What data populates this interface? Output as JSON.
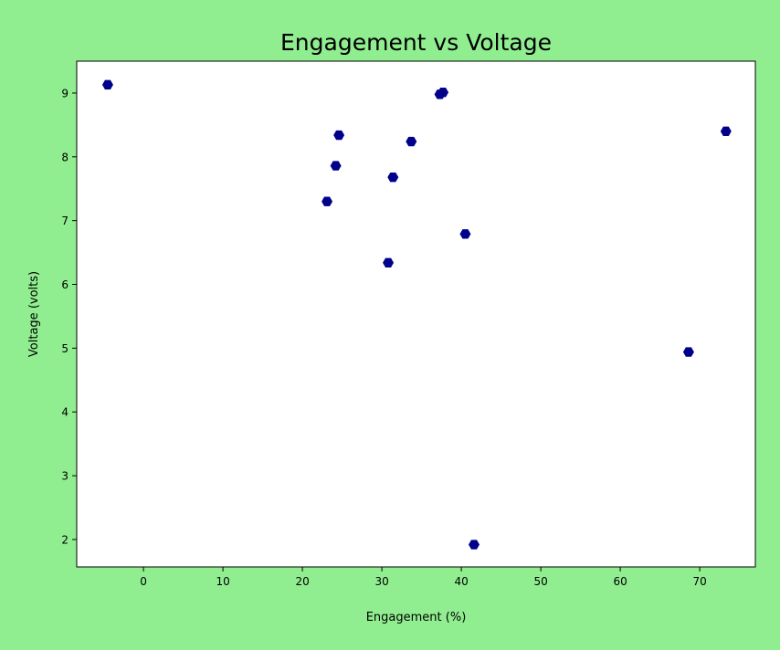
{
  "chart_data": {
    "type": "scatter",
    "title": "Engagement vs Voltage",
    "xlabel": "Engagement (%)",
    "ylabel": "Voltage (volts)",
    "xlim": [
      -8.4,
      77.0
    ],
    "ylim": [
      1.57,
      9.5
    ],
    "xticks": [
      0,
      10,
      20,
      30,
      40,
      50,
      60,
      70
    ],
    "yticks": [
      2,
      3,
      4,
      5,
      6,
      7,
      8,
      9
    ],
    "grid": false,
    "marker": "hexagon",
    "colors": {
      "marker": "#00008b",
      "background": "#90ee90",
      "plot_area": "#ffffff"
    },
    "points": [
      {
        "x": -4.5,
        "y": 9.13
      },
      {
        "x": 37.3,
        "y": 8.98
      },
      {
        "x": 37.7,
        "y": 9.01
      },
      {
        "x": 73.3,
        "y": 8.4
      },
      {
        "x": 24.6,
        "y": 8.34
      },
      {
        "x": 33.7,
        "y": 8.24
      },
      {
        "x": 24.2,
        "y": 7.86
      },
      {
        "x": 31.4,
        "y": 7.68
      },
      {
        "x": 23.1,
        "y": 7.3
      },
      {
        "x": 40.5,
        "y": 6.79
      },
      {
        "x": 30.8,
        "y": 6.34
      },
      {
        "x": 68.6,
        "y": 4.94
      },
      {
        "x": 41.6,
        "y": 1.92
      }
    ]
  }
}
